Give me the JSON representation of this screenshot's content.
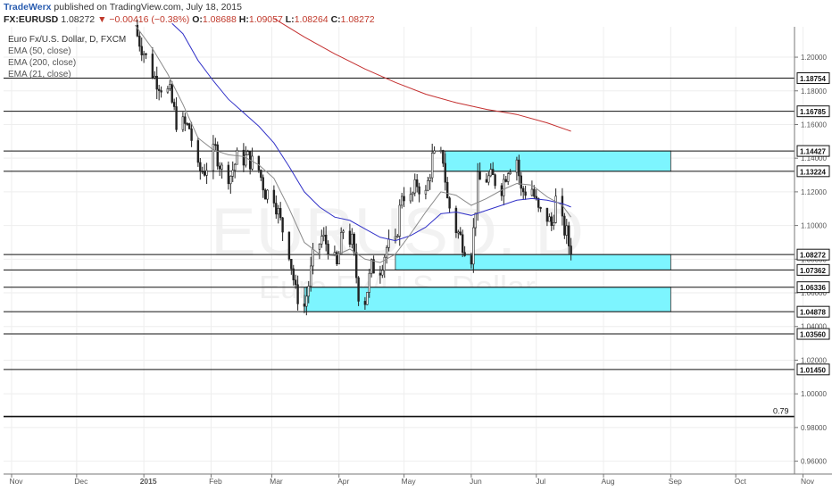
{
  "header": {
    "author": "TradeWerx",
    "published": "published on TradingView.com, July 18, 2015"
  },
  "ohlc_bar": {
    "symbol": "FX:EURUSD",
    "last": "1.08272",
    "change": "▼ −0.00416 (−0.38%)",
    "open_label": "O:",
    "open": "1.08688",
    "high_label": "H:",
    "high": "1.09057",
    "low_label": "L:",
    "low": "1.08264",
    "close_label": "C:",
    "close": "1.08272"
  },
  "legend": {
    "title": "Euro Fx/U.S. Dollar, D, FXCM",
    "indicators": [
      "EMA (50, close)",
      "EMA (200, close)",
      "EMA (21, close)"
    ]
  },
  "watermark": {
    "symbol": "EURUSD, D",
    "name": "Euro Fx/U.S. Dollar"
  },
  "colors": {
    "candle": "#222222",
    "zone_fill": "#7df5ff",
    "zone_stroke": "#333333",
    "ema21": "#8a8a8a",
    "ema50": "#3232c8",
    "ema200": "#c43030",
    "level_line": "#111111",
    "grid": "#eeeeee"
  },
  "chart_data": {
    "type": "candlestick",
    "x_axis_labels": [
      "Nov",
      "Dec",
      "2015",
      "Feb",
      "Mar",
      "Apr",
      "May",
      "Jun",
      "Jul",
      "Aug",
      "Sep",
      "Oct",
      "Nov"
    ],
    "y_range": [
      0.955,
      1.217
    ],
    "y_ticks": [
      "1.20000",
      "1.18000",
      "1.16000",
      "1.14000",
      "1.12000",
      "1.10000",
      "1.08000",
      "1.06000",
      "1.04000",
      "1.02000",
      "1.00000",
      "0.98000",
      "0.96000"
    ],
    "horizontal_levels": [
      {
        "value": 1.18754,
        "label": "1.18754"
      },
      {
        "value": 1.16785,
        "label": "1.16785"
      },
      {
        "value": 1.14427,
        "label": "1.14427"
      },
      {
        "value": 1.13224,
        "label": "1.13224"
      },
      {
        "value": 1.08272,
        "label": "1.08272"
      },
      {
        "value": 1.07362,
        "label": "1.07362"
      },
      {
        "value": 1.06336,
        "label": "1.06336"
      },
      {
        "value": 1.04878,
        "label": "1.04878"
      },
      {
        "value": 1.0356,
        "label": "1.03560"
      },
      {
        "value": 1.0145,
        "label": "1.01450"
      }
    ],
    "special_level": {
      "value": 0.9865,
      "label": "0.79"
    },
    "zones": [
      {
        "from": "May 20",
        "to": "Sep 01",
        "low": 1.13224,
        "high": 1.14427
      },
      {
        "from": "Apr 27",
        "to": "Sep 01",
        "low": 1.07362,
        "high": 1.08272
      },
      {
        "from": "Mar 16",
        "to": "Sep 01",
        "low": 1.04878,
        "high": 1.06336
      }
    ],
    "close_path": [
      [
        "Dec 27",
        1.219
      ],
      [
        "Jan 2",
        1.2
      ],
      [
        "Jan 6",
        1.188
      ],
      [
        "Jan 9",
        1.183
      ],
      [
        "Jan 13",
        1.178
      ],
      [
        "Jan 16",
        1.162
      ],
      [
        "Jan 22",
        1.158
      ],
      [
        "Jan 26",
        1.132
      ],
      [
        "Jan 29",
        1.133
      ],
      [
        "Feb 3",
        1.145
      ],
      [
        "Feb 6",
        1.133
      ],
      [
        "Feb 10",
        1.13
      ],
      [
        "Feb 13",
        1.14
      ],
      [
        "Feb 18",
        1.14
      ],
      [
        "Feb 23",
        1.133
      ],
      [
        "Feb 26",
        1.12
      ],
      [
        "Mar 2",
        1.118
      ],
      [
        "Mar 5",
        1.102
      ],
      [
        "Mar 9",
        1.085
      ],
      [
        "Mar 12",
        1.06
      ],
      [
        "Mar 16",
        1.052
      ],
      [
        "Mar 18",
        1.065
      ],
      [
        "Mar 20",
        1.08
      ],
      [
        "Mar 24",
        1.093
      ],
      [
        "Mar 27",
        1.088
      ],
      [
        "Mar 31",
        1.075
      ],
      [
        "Apr 3",
        1.098
      ],
      [
        "Apr 7",
        1.09
      ],
      [
        "Apr 10",
        1.06
      ],
      [
        "Apr 13",
        1.056
      ],
      [
        "Apr 16",
        1.075
      ],
      [
        "Apr 20",
        1.075
      ],
      [
        "Apr 23",
        1.087
      ],
      [
        "Apr 27",
        1.088
      ],
      [
        "Apr 30",
        1.12
      ],
      [
        "May 4",
        1.115
      ],
      [
        "May 7",
        1.125
      ],
      [
        "May 11",
        1.118
      ],
      [
        "May 14",
        1.14
      ],
      [
        "May 19",
        1.14
      ],
      [
        "May 21",
        1.115
      ],
      [
        "May 25",
        1.098
      ],
      [
        "May 28",
        1.09
      ],
      [
        "Jun 1",
        1.082
      ],
      [
        "Jun 4",
        1.126
      ],
      [
        "Jun 8",
        1.128
      ],
      [
        "Jun 11",
        1.128
      ],
      [
        "Jun 15",
        1.123
      ],
      [
        "Jun 18",
        1.135
      ],
      [
        "Jun 22",
        1.14
      ],
      [
        "Jun 24",
        1.12
      ],
      [
        "Jun 29",
        1.122
      ],
      [
        "Jul 2",
        1.108
      ],
      [
        "Jul 6",
        1.105
      ],
      [
        "Jul 8",
        1.1
      ],
      [
        "Jul 10",
        1.115
      ],
      [
        "Jul 13",
        1.1
      ],
      [
        "Jul 15",
        1.095
      ],
      [
        "Jul 17",
        1.08272
      ]
    ],
    "ema21": [
      [
        "Dec 28",
        1.219
      ],
      [
        "Jan 5",
        1.205
      ],
      [
        "Jan 12",
        1.19
      ],
      [
        "Jan 19",
        1.172
      ],
      [
        "Jan 26",
        1.152
      ],
      [
        "Feb 2",
        1.145
      ],
      [
        "Feb 9",
        1.142
      ],
      [
        "Feb 16",
        1.141
      ],
      [
        "Feb 23",
        1.136
      ],
      [
        "Mar 2",
        1.128
      ],
      [
        "Mar 9",
        1.11
      ],
      [
        "Mar 16",
        1.09
      ],
      [
        "Mar 23",
        1.083
      ],
      [
        "Mar 30",
        1.082
      ],
      [
        "Apr 6",
        1.086
      ],
      [
        "Apr 13",
        1.08
      ],
      [
        "Apr 20",
        1.078
      ],
      [
        "Apr 27",
        1.083
      ],
      [
        "May 4",
        1.095
      ],
      [
        "May 11",
        1.108
      ],
      [
        "May 18",
        1.12
      ],
      [
        "May 25",
        1.118
      ],
      [
        "Jun 1",
        1.112
      ],
      [
        "Jun 8",
        1.116
      ],
      [
        "Jun 15",
        1.121
      ],
      [
        "Jun 22",
        1.125
      ],
      [
        "Jun 29",
        1.124
      ],
      [
        "Jul 6",
        1.117
      ],
      [
        "Jul 13",
        1.112
      ],
      [
        "Jul 17",
        1.105
      ]
    ],
    "ema50": [
      [
        "Jan 14",
        1.22
      ],
      [
        "Jan 19",
        1.214
      ],
      [
        "Jan 26",
        1.198
      ],
      [
        "Feb 2",
        1.186
      ],
      [
        "Feb 9",
        1.175
      ],
      [
        "Feb 16",
        1.167
      ],
      [
        "Feb 23",
        1.159
      ],
      [
        "Mar 2",
        1.149
      ],
      [
        "Mar 9",
        1.135
      ],
      [
        "Mar 16",
        1.12
      ],
      [
        "Mar 23",
        1.111
      ],
      [
        "Mar 30",
        1.105
      ],
      [
        "Apr 6",
        1.103
      ],
      [
        "Apr 13",
        1.098
      ],
      [
        "Apr 20",
        1.093
      ],
      [
        "Apr 27",
        1.091
      ],
      [
        "May 4",
        1.094
      ],
      [
        "May 11",
        1.099
      ],
      [
        "May 18",
        1.107
      ],
      [
        "May 25",
        1.108
      ],
      [
        "Jun 1",
        1.106
      ],
      [
        "Jun 8",
        1.109
      ],
      [
        "Jun 15",
        1.112
      ],
      [
        "Jun 22",
        1.115
      ],
      [
        "Jun 29",
        1.116
      ],
      [
        "Jul 6",
        1.115
      ],
      [
        "Jul 13",
        1.113
      ],
      [
        "Jul 17",
        1.111
      ]
    ],
    "ema200": [
      [
        "Mar 2",
        1.223
      ],
      [
        "Mar 16",
        1.212
      ],
      [
        "Mar 30",
        1.202
      ],
      [
        "Apr 13",
        1.193
      ],
      [
        "Apr 27",
        1.185
      ],
      [
        "May 11",
        1.178
      ],
      [
        "May 25",
        1.173
      ],
      [
        "Jun 8",
        1.169
      ],
      [
        "Jun 22",
        1.166
      ],
      [
        "Jul 6",
        1.161
      ],
      [
        "Jul 17",
        1.156
      ]
    ]
  }
}
